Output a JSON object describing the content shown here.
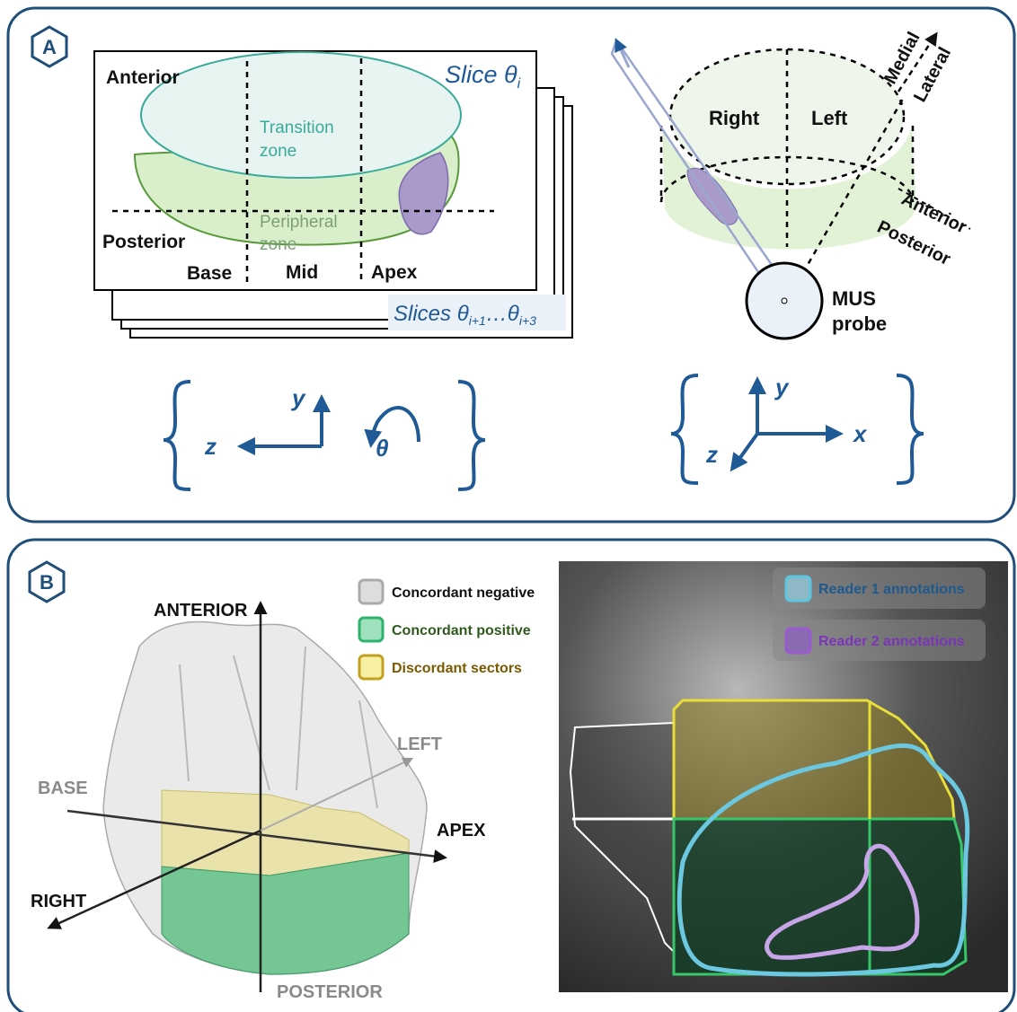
{
  "panel_a": {
    "label": "A",
    "slice_view": {
      "anterior": "Anterior",
      "posterior": "Posterior",
      "slice_title": "Slice θ",
      "slice_title_sub": "i",
      "transition_zone": [
        "Transition",
        "zone"
      ],
      "peripheral_zone": [
        "Peripheral",
        "zone"
      ],
      "base": "Base",
      "mid": "Mid",
      "apex": "Apex",
      "slices": [
        "Slices θ",
        "i+1",
        "…θ",
        "i+3"
      ]
    },
    "axial_view": {
      "right": "Right",
      "left": "Left",
      "medial": "Medial",
      "lateral": "Lateral",
      "anterior": "Anterior",
      "posterior": "Posterior",
      "probe": [
        "MUS",
        "probe"
      ]
    },
    "left_axes": {
      "y": "y",
      "z": "z",
      "theta": "θ"
    },
    "right_axes": {
      "y": "y",
      "z": "z",
      "x": "x"
    }
  },
  "panel_b": {
    "label": "B",
    "render_3d": {
      "anterior": "ANTERIOR",
      "posterior": "POSTERIOR",
      "left": "LEFT",
      "base": "BASE",
      "apex": "APEX",
      "right": "RIGHT"
    },
    "legend": [
      "Concordant negative",
      "Concordant positive",
      "Discordant sectors"
    ],
    "ultrasound_legend": [
      "Reader 1 annotations",
      "Reader 2 annotations"
    ]
  }
}
